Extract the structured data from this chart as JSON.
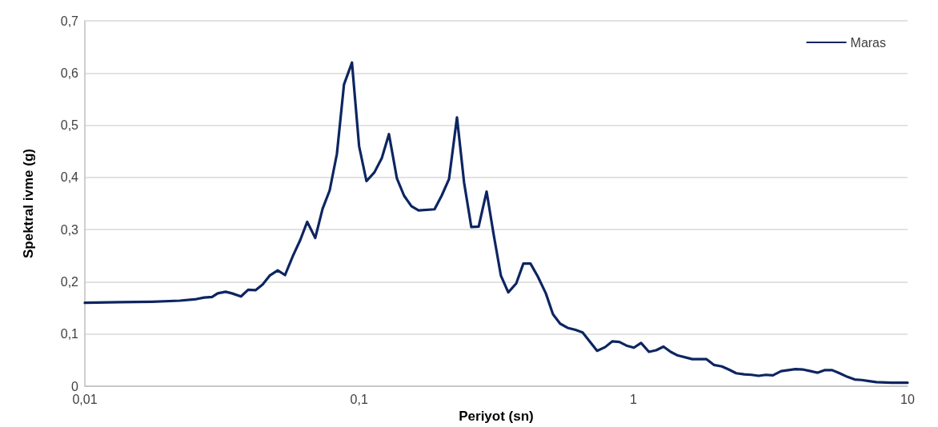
{
  "chart_data": {
    "type": "line",
    "xlabel": "Periyot (sn)",
    "ylabel": "Spektral ivme (g)",
    "log": "x",
    "grid": "y",
    "legend": "top right",
    "marker": "none",
    "line_style": "solid",
    "xlim": [
      0.01,
      10
    ],
    "xticks": [
      {
        "value": 0.01,
        "label": "0,01"
      },
      {
        "value": 0.1,
        "label": "0,1"
      },
      {
        "value": 1,
        "label": "1"
      },
      {
        "value": 10,
        "label": "10"
      }
    ],
    "ylim": [
      0,
      0.7
    ],
    "yticks": [
      0,
      {
        "value": 0.1,
        "label": "0,1"
      },
      {
        "value": 0.2,
        "label": "0,2"
      },
      {
        "value": 0.3,
        "label": "0,3"
      },
      {
        "value": 0.4,
        "label": "0,4"
      },
      {
        "value": 0.5,
        "label": "0,5"
      },
      {
        "value": 0.6,
        "label": "0,6"
      },
      {
        "value": 0.7,
        "label": "0,7"
      }
    ],
    "series": [
      {
        "name": "Maras",
        "color": "#0d2561",
        "x": [
          0.01,
          0.0134,
          0.0176,
          0.0222,
          0.0255,
          0.0272,
          0.0291,
          0.0305,
          0.0326,
          0.0344,
          0.0371,
          0.0394,
          0.0419,
          0.0445,
          0.0472,
          0.0505,
          0.0537,
          0.0574,
          0.061,
          0.0647,
          0.0692,
          0.0736,
          0.0781,
          0.083,
          0.0881,
          0.0942,
          0.1,
          0.1064,
          0.1138,
          0.121,
          0.1285,
          0.1374,
          0.1459,
          0.1552,
          0.1648,
          0.1884,
          0.2,
          0.2128,
          0.2275,
          0.2415,
          0.2566,
          0.2729,
          0.2917,
          0.3097,
          0.3289,
          0.3499,
          0.3741,
          0.3972,
          0.4217,
          0.4487,
          0.4797,
          0.5093,
          0.5408,
          0.5754,
          0.6152,
          0.6531,
          0.7379,
          0.7889,
          0.8375,
          0.8892,
          0.9441,
          1.005,
          1.067,
          1.14,
          1.211,
          1.288,
          1.368,
          1.452,
          1.641,
          1.849,
          1.966,
          2.103,
          2.233,
          2.371,
          2.535,
          2.698,
          2.864,
          3.041,
          3.228,
          3.459,
          3.673,
          3.899,
          4.17,
          4.432,
          4.706,
          4.997,
          5.309,
          5.649,
          6.039,
          6.412,
          6.808,
          7.244,
          7.691,
          8.73,
          10
        ],
        "values": [
          0.16,
          0.161,
          0.162,
          0.164,
          0.167,
          0.17,
          0.171,
          0.178,
          0.181,
          0.178,
          0.172,
          0.185,
          0.184,
          0.195,
          0.212,
          0.222,
          0.213,
          0.25,
          0.28,
          0.315,
          0.284,
          0.34,
          0.375,
          0.445,
          0.578,
          0.62,
          0.46,
          0.393,
          0.41,
          0.437,
          0.483,
          0.398,
          0.365,
          0.345,
          0.337,
          0.339,
          0.365,
          0.397,
          0.515,
          0.39,
          0.305,
          0.306,
          0.373,
          0.29,
          0.212,
          0.18,
          0.197,
          0.235,
          0.235,
          0.21,
          0.178,
          0.138,
          0.12,
          0.112,
          0.108,
          0.103,
          0.068,
          0.075,
          0.086,
          0.085,
          0.078,
          0.074,
          0.083,
          0.066,
          0.069,
          0.076,
          0.066,
          0.059,
          0.052,
          0.052,
          0.041,
          0.038,
          0.032,
          0.025,
          0.023,
          0.022,
          0.02,
          0.022,
          0.021,
          0.029,
          0.031,
          0.033,
          0.032,
          0.029,
          0.026,
          0.031,
          0.031,
          0.025,
          0.018,
          0.013,
          0.012,
          0.01,
          0.008,
          0.007,
          0.007
        ]
      }
    ]
  }
}
